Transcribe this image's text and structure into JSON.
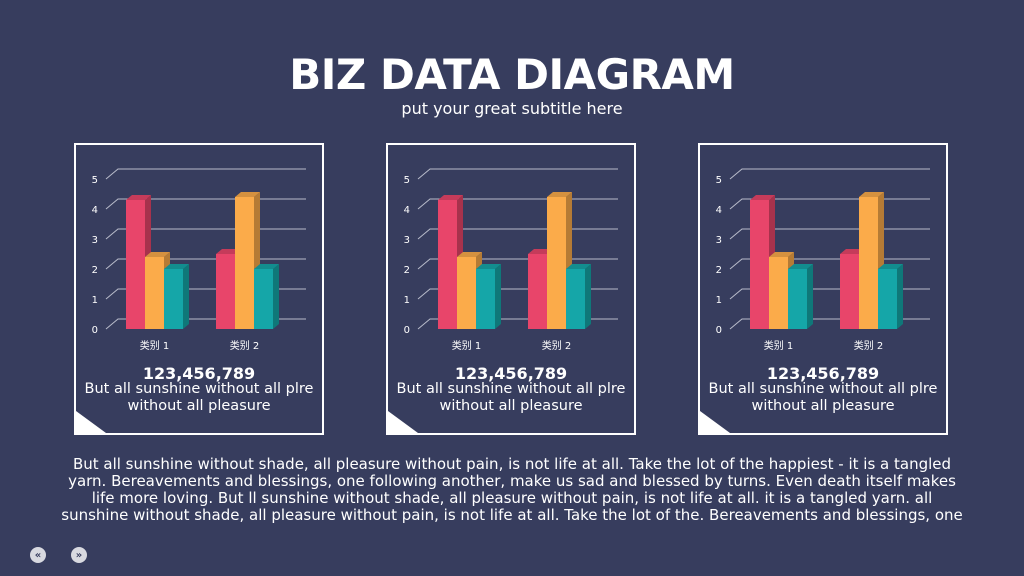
{
  "header": {
    "title": "BIZ DATA DIAGRAM",
    "subtitle": "put your great subtitle here"
  },
  "colors": {
    "background": "#373d5e",
    "series": [
      "#e8456a",
      "#fbab4a",
      "#15a6a8"
    ]
  },
  "cards": [
    {
      "value": "123,456,789",
      "caption": "But all sunshine without all plre without all pleasure"
    },
    {
      "value": "123,456,789",
      "caption": "But all sunshine without all plre without all pleasure"
    },
    {
      "value": "123,456,789",
      "caption": "But all sunshine without all plre without all pleasure"
    }
  ],
  "chart_data": [
    {
      "type": "bar",
      "categories": [
        "类别 1",
        "类别 2"
      ],
      "series": [
        {
          "values": [
            4.3,
            2.5
          ]
        },
        {
          "values": [
            2.4,
            4.4
          ]
        },
        {
          "values": [
            2.0,
            2.0
          ]
        }
      ],
      "ylim": [
        0,
        5
      ],
      "yticks": [
        "0",
        "1",
        "2",
        "3",
        "4",
        "5"
      ],
      "grid": true
    },
    {
      "type": "bar",
      "categories": [
        "类别 1",
        "类别 2"
      ],
      "series": [
        {
          "values": [
            4.3,
            2.5
          ]
        },
        {
          "values": [
            2.4,
            4.4
          ]
        },
        {
          "values": [
            2.0,
            2.0
          ]
        }
      ],
      "ylim": [
        0,
        5
      ],
      "yticks": [
        "0",
        "1",
        "2",
        "3",
        "4",
        "5"
      ],
      "grid": true
    },
    {
      "type": "bar",
      "categories": [
        "类别 1",
        "类别 2"
      ],
      "series": [
        {
          "values": [
            4.3,
            2.5
          ]
        },
        {
          "values": [
            2.4,
            4.4
          ]
        },
        {
          "values": [
            2.0,
            2.0
          ]
        }
      ],
      "ylim": [
        0,
        5
      ],
      "yticks": [
        "0",
        "1",
        "2",
        "3",
        "4",
        "5"
      ],
      "grid": true
    }
  ],
  "body_text": "But all sunshine without shade, all pleasure without pain, is not life at all. Take the lot of the happiest - it is a tangled yarn. Bereavements and blessings, one following another, make us sad and blessed by turns. Even death itself makes life more loving. But ll sunshine without shade, all pleasure without pain, is not life at all. it is a tangled yarn. all sunshine without shade, all pleasure without pain, is not life at all. Take the lot of the. Bereavements and blessings, one",
  "nav": {
    "prev_icon": "«",
    "next_icon": "»"
  }
}
